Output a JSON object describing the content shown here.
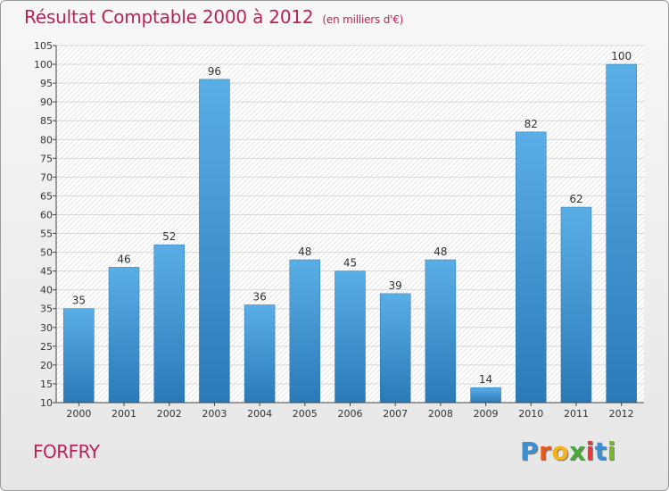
{
  "title": {
    "main": "Résultat Comptable 2000 à 2012",
    "unit": "(en milliers d'€)"
  },
  "commune": "FORFRY",
  "logo": {
    "letters": [
      "P",
      "r",
      "o",
      "x",
      "i",
      "t",
      "i"
    ],
    "colors": [
      "#3c8fd0",
      "#e45a1e",
      "#f3b31a",
      "#4aa63a",
      "#e23b3b",
      "#3c8fd0",
      "#77b82a"
    ]
  },
  "colors": {
    "bar_top": "#5aaee6",
    "bar_bottom": "#2a7ab8",
    "title": "#b8235a",
    "grid": "#d8d8d8",
    "axis": "#444444"
  },
  "chart_data": {
    "type": "bar",
    "title": "Résultat Comptable 2000 à 2012",
    "xlabel": "",
    "ylabel": "",
    "categories": [
      "2000",
      "2001",
      "2002",
      "2003",
      "2004",
      "2005",
      "2006",
      "2007",
      "2008",
      "2009",
      "2010",
      "2011",
      "2012"
    ],
    "values": [
      35,
      46,
      52,
      96,
      36,
      48,
      45,
      39,
      48,
      14,
      82,
      62,
      100
    ],
    "ylim": [
      10,
      105
    ],
    "yticks": [
      10,
      15,
      20,
      25,
      30,
      35,
      40,
      45,
      50,
      55,
      60,
      65,
      70,
      75,
      80,
      85,
      90,
      95,
      100,
      105
    ],
    "grid": true
  }
}
